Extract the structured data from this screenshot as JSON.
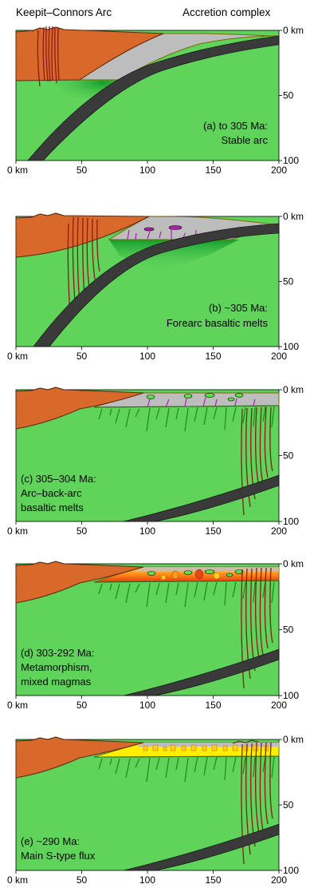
{
  "header": {
    "left": "Keepit–Connors Arc",
    "right": "Accretion complex"
  },
  "colors": {
    "mantle_green": "#5fd35a",
    "crust_orange": "#d9692a",
    "accretion_gray": "#bdbdbd",
    "slab_dark": "#3a3a3a",
    "dike_red": "#8b1a1a",
    "basalt_purple": "#b020b0",
    "melt_green_pod": "#5fe04a",
    "melt_yellow": "#ffee00",
    "melt_orange": "#ff7a00"
  },
  "x_ticks": [
    "0 km",
    "50",
    "100",
    "150",
    "200"
  ],
  "depth_ticks": [
    "0 km",
    "50",
    "100"
  ],
  "panels": [
    {
      "label_lines": [
        "(a) to 305 Ma:",
        "Stable arc"
      ]
    },
    {
      "label_lines": [
        "(b) ~305 Ma:",
        "Forearc basaltic melts"
      ]
    },
    {
      "label_lines": [
        "(c) 305–304 Ma:",
        "Arc–back-arc",
        "basaltic melts"
      ]
    },
    {
      "label_lines": [
        "(d) 303-292 Ma:",
        "Metamorphism,",
        "mixed magmas"
      ]
    },
    {
      "label_lines": [
        "(e) ~290 Ma:",
        "Main S-type flux"
      ]
    }
  ]
}
